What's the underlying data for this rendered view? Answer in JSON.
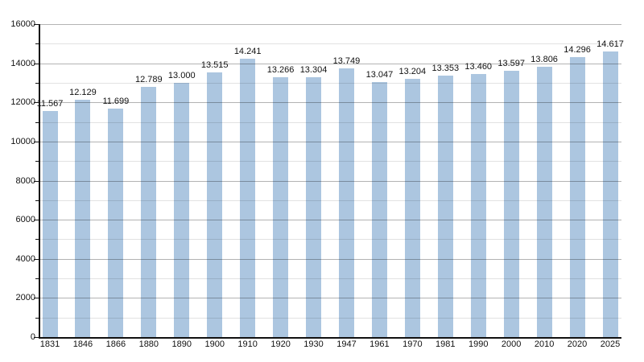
{
  "chart_data": {
    "type": "bar",
    "title": "",
    "categories": [
      "1831",
      "1846",
      "1866",
      "1880",
      "1890",
      "1900",
      "1910",
      "1920",
      "1930",
      "1947",
      "1961",
      "1970",
      "1981",
      "1990",
      "2000",
      "2010",
      "2020",
      "2025"
    ],
    "values": [
      11567,
      12129,
      11699,
      12789,
      13000,
      13515,
      14241,
      13266,
      13304,
      13749,
      13047,
      13204,
      13353,
      13460,
      13597,
      13806,
      14296,
      14617
    ],
    "bar_labels": [
      "11.567",
      "12.129",
      "11.699",
      "12.789",
      "13.000",
      "13.515",
      "14.241",
      "13.266",
      "13.304",
      "13.749",
      "13.047",
      "13.204",
      "13.353",
      "13.460",
      "13.597",
      "13.806",
      "14.296",
      "14.617"
    ],
    "xlabel": "",
    "ylabel": "",
    "ylim": [
      0,
      16000
    ],
    "yticks_labeled": [
      0,
      2000,
      4000,
      6000,
      8000,
      10000,
      12000,
      14000,
      16000
    ],
    "ytick_minor_step": 1000,
    "grid": true,
    "legend": false
  },
  "colors": {
    "background": "#ffffff",
    "bar": "#acc6e0",
    "axis": "#111111",
    "grid_major": "#b3b3b3",
    "grid_minor": "#e2e2e2",
    "text": "#111111"
  }
}
